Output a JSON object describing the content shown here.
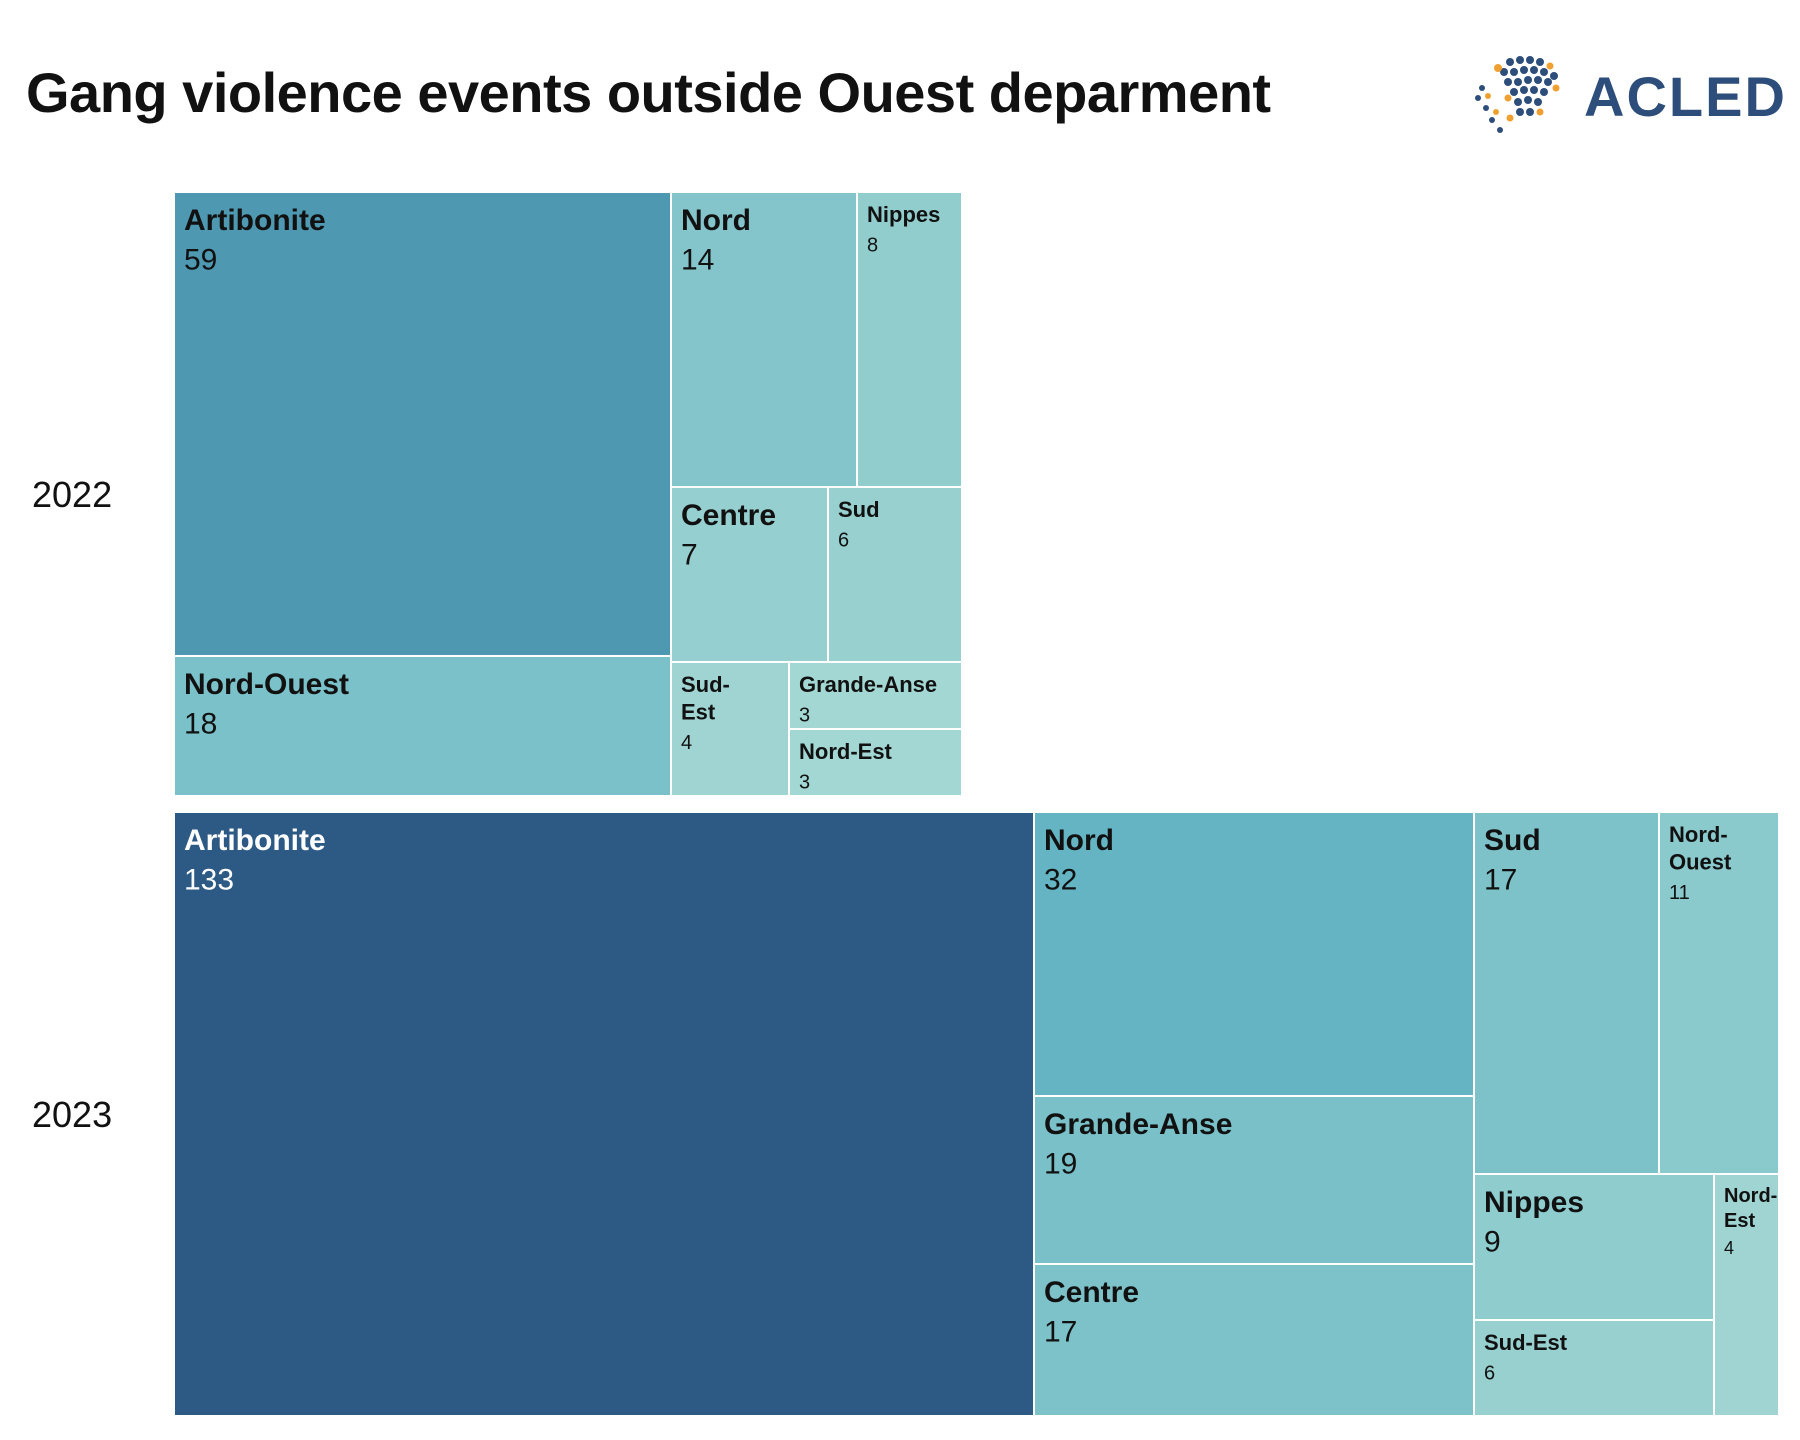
{
  "title": "Gang violence events outside Ouest deparment",
  "logo": {
    "text": "ACLED",
    "icon": "globe-dots-icon",
    "color": "#2d4d7a",
    "accent": "#f0a030"
  },
  "chart_data": {
    "type": "treemap",
    "title": "Gang violence events outside Ouest deparment",
    "groups": [
      {
        "label": "2022",
        "items": [
          {
            "name": "Artibonite",
            "value": 59
          },
          {
            "name": "Nord-Ouest",
            "value": 18
          },
          {
            "name": "Nord",
            "value": 14
          },
          {
            "name": "Nippes",
            "value": 8
          },
          {
            "name": "Centre",
            "value": 7
          },
          {
            "name": "Sud",
            "value": 6
          },
          {
            "name": "Sud-Est",
            "value": 4
          },
          {
            "name": "Grande-Anse",
            "value": 3
          },
          {
            "name": "Nord-Est",
            "value": 3
          }
        ]
      },
      {
        "label": "2023",
        "items": [
          {
            "name": "Artibonite",
            "value": 133
          },
          {
            "name": "Nord",
            "value": 32
          },
          {
            "name": "Grande-Anse",
            "value": 19
          },
          {
            "name": "Centre",
            "value": 17
          },
          {
            "name": "Sud",
            "value": 17
          },
          {
            "name": "Nord-Ouest",
            "value": 11
          },
          {
            "name": "Nippes",
            "value": 9
          },
          {
            "name": "Sud-Est",
            "value": 6
          },
          {
            "name": "Nord-Est",
            "value": 4
          }
        ]
      }
    ],
    "color_scale": {
      "low": "#bfe6da",
      "mid": "#5aaec0",
      "high": "#2d5985"
    }
  }
}
